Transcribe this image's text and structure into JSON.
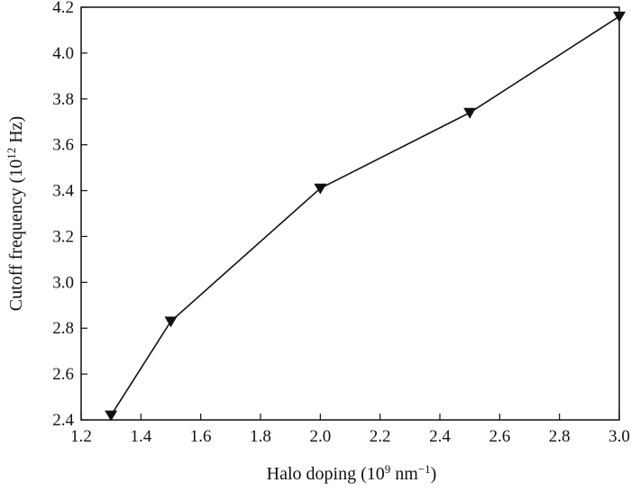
{
  "chart_data": {
    "type": "line",
    "title": "",
    "xlabel": {
      "main": "Halo doping (10",
      "sup1": "9",
      "mid": " nm",
      "sup2": "−1",
      "end": ")"
    },
    "ylabel": {
      "main": "Cutoff frequency (10",
      "sup": "12",
      "end": " Hz)"
    },
    "xlim": [
      1.2,
      3.0
    ],
    "ylim": [
      2.4,
      4.2
    ],
    "xticks": [
      "1.2",
      "1.4",
      "1.6",
      "1.8",
      "2.0",
      "2.2",
      "2.4",
      "2.6",
      "2.8",
      "3.0"
    ],
    "yticks": [
      "2.4",
      "2.6",
      "2.8",
      "3.0",
      "3.2",
      "3.4",
      "3.6",
      "3.8",
      "4.0",
      "4.2"
    ],
    "grid": false,
    "series": [
      {
        "marker": "triangle-down",
        "color": "#111111",
        "x": [
          1.3,
          1.5,
          2.0,
          2.5,
          3.0
        ],
        "y": [
          2.42,
          2.83,
          3.41,
          3.74,
          4.16
        ]
      }
    ]
  }
}
